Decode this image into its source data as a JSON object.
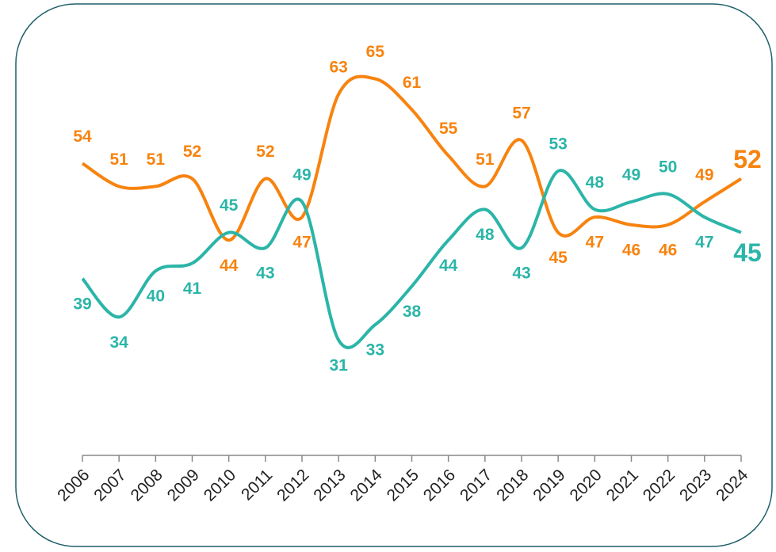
{
  "chart_data": {
    "type": "line",
    "categories": [
      "2006",
      "2007",
      "2008",
      "2009",
      "2010",
      "2011",
      "2012",
      "2013",
      "2014",
      "2015",
      "2016",
      "2017",
      "2018",
      "2019",
      "2020",
      "2021",
      "2022",
      "2023",
      "2024"
    ],
    "series": [
      {
        "color": "#f7830f",
        "values": [
          54,
          51,
          51,
          52,
          44,
          52,
          47,
          63,
          65,
          61,
          55,
          51,
          57,
          45,
          47,
          46,
          46,
          49,
          52
        ]
      },
      {
        "color": "#2bb5a8",
        "values": [
          39,
          34,
          40,
          41,
          45,
          43,
          49,
          31,
          33,
          38,
          44,
          48,
          43,
          53,
          48,
          49,
          50,
          47,
          45
        ]
      }
    ],
    "ylim": [
      16,
      70
    ]
  }
}
